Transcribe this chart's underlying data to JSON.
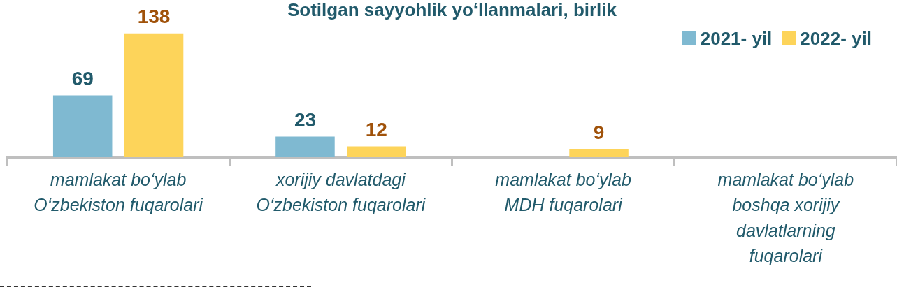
{
  "chart_data": {
    "type": "bar",
    "title": "Sotilgan sayyohlik yo‘llanmalari, birlik",
    "categories": [
      "mamlakat bo‘ylab O‘zbekiston fuqarolari",
      "xorijiy davlatdagi O‘zbekiston fuqarolari",
      "mamlakat bo‘ylab MDH fuqarolari",
      "mamlakat bo‘ylab boshqa xorijiy davlatlarning fuqarolari"
    ],
    "series": [
      {
        "name": "2021- yil",
        "color": "#7fb9d1",
        "values": [
          69,
          23,
          null,
          null
        ]
      },
      {
        "name": "2022- yil",
        "color": "#fdd45a",
        "values": [
          138,
          12,
          9,
          null
        ]
      }
    ],
    "data_labels": true,
    "legend": "top right"
  }
}
